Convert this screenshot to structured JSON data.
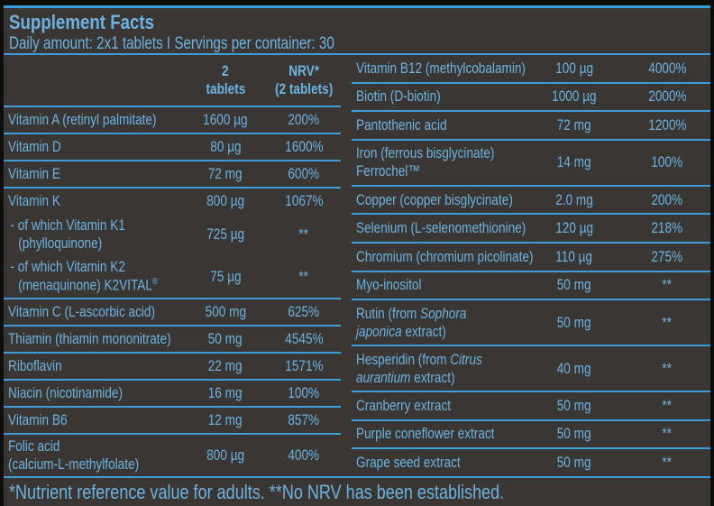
{
  "header": {
    "title": "Supplement Facts",
    "daily_amount": "Daily amount: 2x1 tablets I Servings per container: 30"
  },
  "table": {
    "left": {
      "headers": {
        "amount": [
          "2",
          "tablets"
        ],
        "nrv": [
          "NRV*",
          "(2 tablets)"
        ]
      },
      "rows": [
        {
          "name": [
            [
              {
                "t": "Vitamin A (retinyl palmitate)"
              }
            ]
          ],
          "amount": "1600 µg",
          "nrv": "200%",
          "line": true
        },
        {
          "name": [
            [
              {
                "t": "Vitamin D"
              }
            ]
          ],
          "amount": "80 µg",
          "nrv": "1600%",
          "line": true
        },
        {
          "name": [
            [
              {
                "t": "Vitamin E"
              }
            ]
          ],
          "amount": "72 mg",
          "nrv": "600%",
          "line": true
        },
        {
          "name": [
            [
              {
                "t": "Vitamin K"
              }
            ]
          ],
          "amount": "800 µg",
          "nrv": "1067%",
          "line": false
        },
        {
          "name": [
            [
              {
                "t": "- of which Vitamin K1"
              }
            ],
            [
              {
                "t": "(phylloquinone)"
              }
            ]
          ],
          "amount": "725 µg",
          "nrv": "**",
          "line": false,
          "sub": true
        },
        {
          "name": [
            [
              {
                "t": "- of which Vitamin K2"
              }
            ],
            [
              {
                "t": "(menaquinone) K2VITAL"
              },
              {
                "t": "®",
                "sup": true
              }
            ]
          ],
          "amount": "75 µg",
          "nrv": "**",
          "line": true,
          "sub": true
        },
        {
          "name": [
            [
              {
                "t": "Vitamin C (L-ascorbic acid)"
              }
            ]
          ],
          "amount": "500 mg",
          "nrv": "625%",
          "line": true
        },
        {
          "name": [
            [
              {
                "t": "Thiamin (thiamin mononitrate)"
              }
            ]
          ],
          "amount": "50 mg",
          "nrv": "4545%",
          "line": true
        },
        {
          "name": [
            [
              {
                "t": "Riboflavin"
              }
            ]
          ],
          "amount": "22 mg",
          "nrv": "1571%",
          "line": true
        },
        {
          "name": [
            [
              {
                "t": "Niacin (nicotinamide)"
              }
            ]
          ],
          "amount": "16 mg",
          "nrv": "100%",
          "line": true
        },
        {
          "name": [
            [
              {
                "t": "Vitamin B6"
              }
            ]
          ],
          "amount": "12 mg",
          "nrv": "857%",
          "line": true
        },
        {
          "name": [
            [
              {
                "t": "Folic acid"
              }
            ],
            [
              {
                "t": "(calcium-L-methylfolate)"
              }
            ]
          ],
          "amount": "800 µg",
          "nrv": "400%",
          "line": false
        }
      ]
    },
    "right": {
      "rows": [
        {
          "name": [
            [
              {
                "t": "Vitamin B12 (methylcobalamin)"
              }
            ]
          ],
          "amount": "100 µg",
          "nrv": "4000%",
          "line": true
        },
        {
          "name": [
            [
              {
                "t": "Biotin (D-biotin)"
              }
            ]
          ],
          "amount": "1000 µg",
          "nrv": "2000%",
          "line": true
        },
        {
          "name": [
            [
              {
                "t": "Pantothenic acid"
              }
            ]
          ],
          "amount": "72 mg",
          "nrv": "1200%",
          "line": true
        },
        {
          "name": [
            [
              {
                "t": "Iron (ferrous bisglycinate)"
              }
            ],
            [
              {
                "t": "Ferrochel™"
              }
            ]
          ],
          "amount": "14 mg",
          "nrv": "100%",
          "line": true
        },
        {
          "name": [
            [
              {
                "t": "Copper (copper bisglycinate)"
              }
            ]
          ],
          "amount": "2.0 mg",
          "nrv": "200%",
          "line": true
        },
        {
          "name": [
            [
              {
                "t": "Selenium (L-selenomethionine)"
              }
            ]
          ],
          "amount": "120 µg",
          "nrv": "218%",
          "line": true
        },
        {
          "name": [
            [
              {
                "t": "Chromium (chromium picolinate)"
              }
            ]
          ],
          "amount": "110 µg",
          "nrv": "275%",
          "line": true
        },
        {
          "name": [
            [
              {
                "t": "Myo-inositol"
              }
            ]
          ],
          "amount": "50 mg",
          "nrv": "**",
          "line": true
        },
        {
          "name": [
            [
              {
                "t": "Rutin (from "
              },
              {
                "t": "Sophora",
                "i": true
              }
            ],
            [
              {
                "t": "japonica",
                "i": true
              },
              {
                "t": " extract)"
              }
            ]
          ],
          "amount": "50 mg",
          "nrv": "**",
          "line": true
        },
        {
          "name": [
            [
              {
                "t": "Hesperidin (from "
              },
              {
                "t": "Citrus",
                "i": true
              }
            ],
            [
              {
                "t": "aurantium",
                "i": true
              },
              {
                "t": " extract)"
              }
            ]
          ],
          "amount": "40 mg",
          "nrv": "**",
          "line": true
        },
        {
          "name": [
            [
              {
                "t": "Cranberry extract"
              }
            ]
          ],
          "amount": "50 mg",
          "nrv": "**",
          "line": true
        },
        {
          "name": [
            [
              {
                "t": "Purple coneflower extract"
              }
            ]
          ],
          "amount": "50 mg",
          "nrv": "**",
          "line": true
        },
        {
          "name": [
            [
              {
                "t": "Grape seed extract"
              }
            ]
          ],
          "amount": "50 mg",
          "nrv": "**",
          "line": false
        }
      ]
    }
  },
  "footer": {
    "note": "*Nutrient reference value for adults. **No NRV has been established."
  },
  "colors": {
    "background": "#3a3634",
    "frame": "#0d0d0c",
    "text_blue": "#6db3e1",
    "line_blue": "#3e9ed8"
  }
}
